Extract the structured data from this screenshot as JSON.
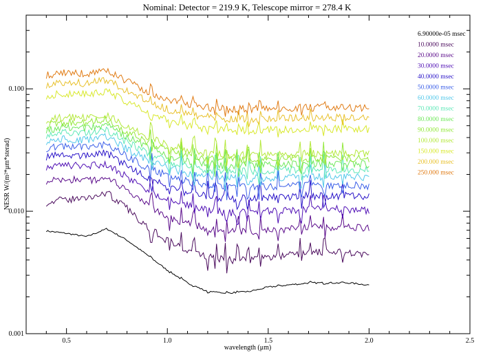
{
  "chart_data": {
    "type": "line",
    "title": "Nominal: Detector = 219.9 K, Telescope mirror = 278.4 K",
    "xlabel": "wavelength (μm)",
    "ylabel": "NESR W/(m²*μm*sterad)",
    "xlim": [
      0.3,
      2.5
    ],
    "ylim": [
      0.001,
      0.4
    ],
    "yscale": "log",
    "x_ticks": [
      "0.5",
      "1.0",
      "1.5",
      "2.0",
      "2.5"
    ],
    "y_ticks": [
      "0.001",
      "0.010",
      "0.100"
    ],
    "grid": false,
    "legend_position": "top-right",
    "x": [
      0.4,
      0.5,
      0.6,
      0.7,
      0.8,
      0.9,
      1.0,
      1.1,
      1.2,
      1.3,
      1.4,
      1.5,
      1.6,
      1.7,
      1.8,
      1.9,
      2.0
    ],
    "series": [
      {
        "name": "6.90000e-05 msec",
        "color": "#000000",
        "values": [
          0.0069,
          0.0066,
          0.0062,
          0.0072,
          0.0058,
          0.0044,
          0.0033,
          0.0026,
          0.0022,
          0.00215,
          0.0022,
          0.0024,
          0.0025,
          0.0026,
          0.0026,
          0.0026,
          0.0025
        ]
      },
      {
        "name": "10.0000 msec",
        "color": "#4a0a5c",
        "values": [
          0.0118,
          0.0125,
          0.0128,
          0.0142,
          0.0105,
          0.0075,
          0.0058,
          0.0048,
          0.0042,
          0.004,
          0.004,
          0.0042,
          0.0044,
          0.0046,
          0.0046,
          0.0046,
          0.0045
        ]
      },
      {
        "name": "20.0000 msec",
        "color": "#5a0a8a",
        "values": [
          0.0178,
          0.0182,
          0.0178,
          0.019,
          0.0145,
          0.0112,
          0.009,
          0.008,
          0.0072,
          0.0068,
          0.0068,
          0.007,
          0.0072,
          0.0074,
          0.0074,
          0.0074,
          0.0072
        ]
      },
      {
        "name": "30.0000 msec",
        "color": "#4e0db4",
        "values": [
          0.0232,
          0.0238,
          0.0232,
          0.0245,
          0.019,
          0.015,
          0.0125,
          0.0112,
          0.0102,
          0.0098,
          0.0098,
          0.01,
          0.0102,
          0.0104,
          0.0104,
          0.0104,
          0.0102
        ]
      },
      {
        "name": "40.0000 msec",
        "color": "#2812c8",
        "values": [
          0.028,
          0.029,
          0.0284,
          0.03,
          0.0235,
          0.0188,
          0.0158,
          0.0142,
          0.0132,
          0.0128,
          0.0128,
          0.013,
          0.0132,
          0.0134,
          0.0134,
          0.0134,
          0.0132
        ]
      },
      {
        "name": "50.0000 msec",
        "color": "#3a5ee8",
        "values": [
          0.0328,
          0.034,
          0.0333,
          0.0355,
          0.028,
          0.0228,
          0.0195,
          0.0175,
          0.0163,
          0.0158,
          0.0158,
          0.016,
          0.0162,
          0.0164,
          0.0164,
          0.0164,
          0.0162
        ]
      },
      {
        "name": "60.0000 msec",
        "color": "#52c8ea",
        "values": [
          0.0375,
          0.0392,
          0.0384,
          0.041,
          0.0325,
          0.0265,
          0.0228,
          0.0205,
          0.0192,
          0.0186,
          0.0186,
          0.0188,
          0.019,
          0.0192,
          0.0192,
          0.0192,
          0.019
        ]
      },
      {
        "name": "70.0000 msec",
        "color": "#5ee8b8",
        "values": [
          0.042,
          0.044,
          0.0432,
          0.0462,
          0.0368,
          0.03,
          0.0258,
          0.0232,
          0.0218,
          0.0212,
          0.0212,
          0.0214,
          0.0216,
          0.0218,
          0.0218,
          0.0218,
          0.0216
        ]
      },
      {
        "name": "80.0000 msec",
        "color": "#6ee85a",
        "values": [
          0.0465,
          0.0488,
          0.048,
          0.0515,
          0.041,
          0.0335,
          0.0288,
          0.026,
          0.0244,
          0.0236,
          0.0236,
          0.0239,
          0.0242,
          0.0244,
          0.0244,
          0.0244,
          0.0242
        ]
      },
      {
        "name": "90.0000 msec",
        "color": "#92e83a",
        "values": [
          0.051,
          0.0535,
          0.0526,
          0.0565,
          0.045,
          0.0368,
          0.0318,
          0.0288,
          0.027,
          0.0262,
          0.0262,
          0.0265,
          0.0268,
          0.027,
          0.027,
          0.027,
          0.0268
        ]
      },
      {
        "name": "100.000 msec",
        "color": "#b4e83a",
        "values": [
          0.056,
          0.0588,
          0.0578,
          0.062,
          0.0495,
          0.0405,
          0.035,
          0.0316,
          0.0296,
          0.0288,
          0.0288,
          0.0291,
          0.0294,
          0.0297,
          0.0297,
          0.0297,
          0.0295
        ]
      },
      {
        "name": "150.000 msec",
        "color": "#d8e82a",
        "values": [
          0.088,
          0.092,
          0.0905,
          0.097,
          0.078,
          0.064,
          0.0555,
          0.0502,
          0.047,
          0.0458,
          0.0458,
          0.0462,
          0.0467,
          0.0472,
          0.0472,
          0.0472,
          0.0468
        ]
      },
      {
        "name": "200.000 msec",
        "color": "#e8c02a",
        "values": [
          0.108,
          0.113,
          0.111,
          0.119,
          0.096,
          0.079,
          0.0685,
          0.062,
          0.0582,
          0.0566,
          0.0566,
          0.0571,
          0.0577,
          0.0583,
          0.0583,
          0.0583,
          0.0578
        ]
      },
      {
        "name": "250.000 msec",
        "color": "#e07a12",
        "values": [
          0.13,
          0.136,
          0.1335,
          0.143,
          0.115,
          0.095,
          0.0825,
          0.0748,
          0.0702,
          0.0683,
          0.0683,
          0.0689,
          0.0696,
          0.0703,
          0.0703,
          0.0703,
          0.0697
        ]
      }
    ]
  }
}
